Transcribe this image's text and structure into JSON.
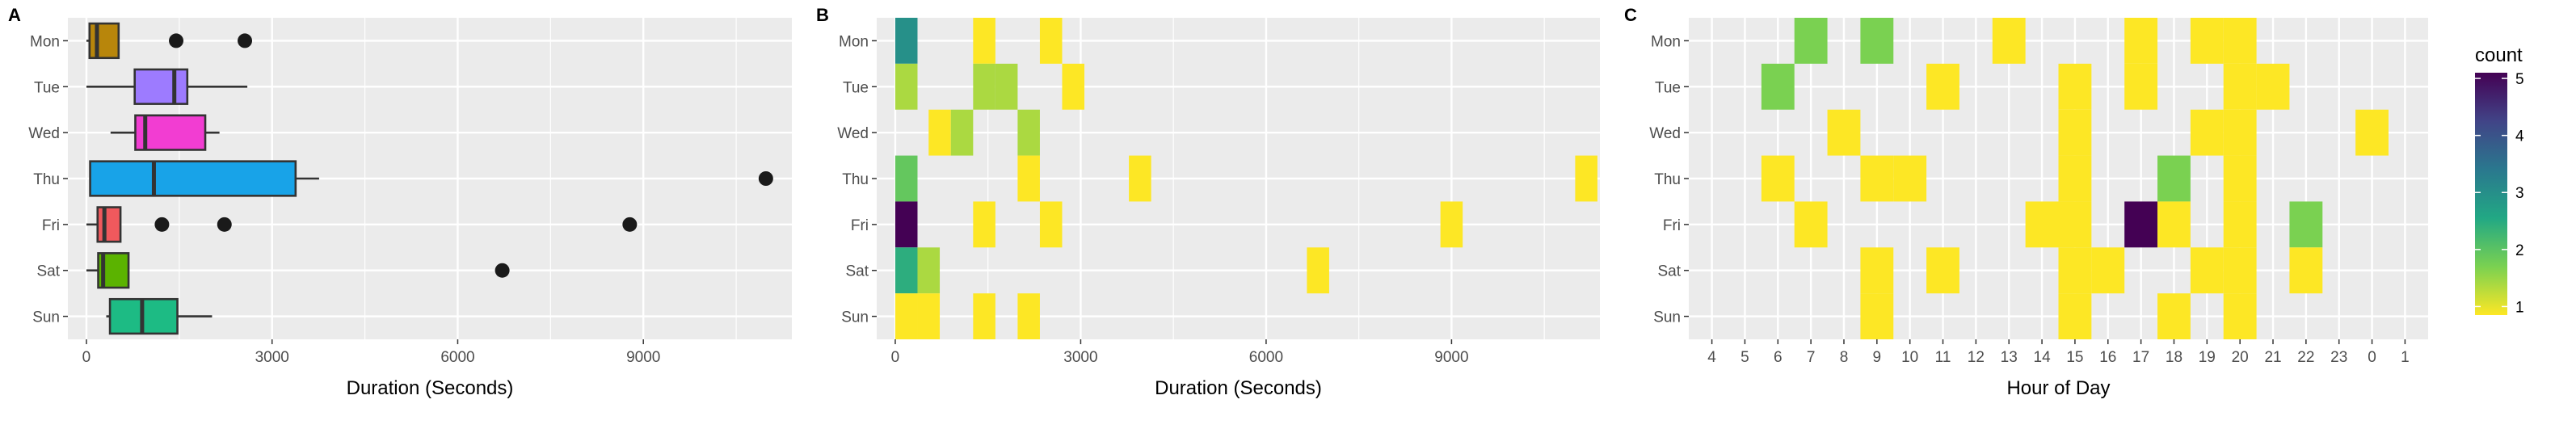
{
  "colors": {
    "panel_bg": "#EBEBEB",
    "grid": "#FFFFFF",
    "tick_text": "#4D4D4D",
    "box_outline": "#333333",
    "outlier": "#1A1A1A",
    "day_fills": {
      "Mon": "#B8860B",
      "Tue": "#9D7BFF",
      "Wed": "#F23DD2",
      "Thu": "#18A3E8",
      "Fri": "#F0595D",
      "Sat": "#5BB300",
      "Sun": "#1DBB84"
    },
    "viridis": [
      "#FDE725",
      "#7AD151",
      "#22A884",
      "#2A788E",
      "#414487",
      "#440154"
    ]
  },
  "chart_data": [
    {
      "panel": "A",
      "type": "boxplot",
      "xlabel": "Duration (Seconds)",
      "ylabel": "",
      "xlim": [
        -300,
        11400
      ],
      "xticks": [
        0,
        3000,
        6000,
        9000
      ],
      "grid": true,
      "categories": [
        "Mon",
        "Tue",
        "Wed",
        "Thu",
        "Fri",
        "Sat",
        "Sun"
      ],
      "boxes": [
        {
          "day": "Mon",
          "whisker_low": 0,
          "q1": 50,
          "median": 170,
          "q3": 520,
          "whisker_high": 520,
          "outliers": [
            1450,
            2560
          ]
        },
        {
          "day": "Tue",
          "whisker_low": 0,
          "q1": 780,
          "median": 1420,
          "q3": 1630,
          "whisker_high": 2600,
          "outliers": []
        },
        {
          "day": "Wed",
          "whisker_low": 390,
          "q1": 790,
          "median": 950,
          "q3": 1920,
          "whisker_high": 2150,
          "outliers": []
        },
        {
          "day": "Thu",
          "whisker_low": 60,
          "q1": 60,
          "median": 1090,
          "q3": 3380,
          "whisker_high": 3760,
          "outliers": [
            10980
          ]
        },
        {
          "day": "Fri",
          "whisker_low": 0,
          "q1": 180,
          "median": 290,
          "q3": 550,
          "whisker_high": 550,
          "outliers": [
            1220,
            2230,
            8780
          ]
        },
        {
          "day": "Sat",
          "whisker_low": 0,
          "q1": 190,
          "median": 270,
          "q3": 680,
          "whisker_high": 680,
          "outliers": [
            6720
          ]
        },
        {
          "day": "Sun",
          "whisker_low": 320,
          "q1": 380,
          "median": 900,
          "q3": 1470,
          "whisker_high": 2030,
          "outliers": []
        }
      ]
    },
    {
      "panel": "B",
      "type": "heatmap",
      "xlabel": "Duration (Seconds)",
      "ylabel": "",
      "xlim": [
        -300,
        11400
      ],
      "xticks": [
        0,
        3000,
        6000,
        9000
      ],
      "bin_width": 360,
      "categories": [
        "Mon",
        "Tue",
        "Wed",
        "Thu",
        "Fri",
        "Sat",
        "Sun"
      ],
      "cells": [
        {
          "day": "Mon",
          "x": 0,
          "count": 3
        },
        {
          "day": "Mon",
          "x": 1260,
          "count": 1
        },
        {
          "day": "Mon",
          "x": 2340,
          "count": 1
        },
        {
          "day": "Tue",
          "x": 0,
          "count": 1.5
        },
        {
          "day": "Tue",
          "x": 1260,
          "count": 1.5
        },
        {
          "day": "Tue",
          "x": 1620,
          "count": 1.5
        },
        {
          "day": "Tue",
          "x": 2700,
          "count": 1
        },
        {
          "day": "Wed",
          "x": 540,
          "count": 1
        },
        {
          "day": "Wed",
          "x": 900,
          "count": 1.5
        },
        {
          "day": "Wed",
          "x": 1980,
          "count": 1.5
        },
        {
          "day": "Thu",
          "x": 0,
          "count": 2
        },
        {
          "day": "Thu",
          "x": 1980,
          "count": 1
        },
        {
          "day": "Thu",
          "x": 3780,
          "count": 1
        },
        {
          "day": "Thu",
          "x": 11000,
          "count": 1
        },
        {
          "day": "Fri",
          "x": 0,
          "count": 5
        },
        {
          "day": "Fri",
          "x": 1260,
          "count": 1
        },
        {
          "day": "Fri",
          "x": 2340,
          "count": 1
        },
        {
          "day": "Fri",
          "x": 8820,
          "count": 1
        },
        {
          "day": "Sat",
          "x": 0,
          "count": 2.5
        },
        {
          "day": "Sat",
          "x": 360,
          "count": 1.5
        },
        {
          "day": "Sat",
          "x": 6660,
          "count": 1
        },
        {
          "day": "Sun",
          "x": 0,
          "count": 1
        },
        {
          "day": "Sun",
          "x": 360,
          "count": 1
        },
        {
          "day": "Sun",
          "x": 1260,
          "count": 1
        },
        {
          "day": "Sun",
          "x": 1980,
          "count": 1
        }
      ]
    },
    {
      "panel": "C",
      "type": "heatmap",
      "xlabel": "Hour of Day",
      "ylabel": "",
      "categories": [
        "Mon",
        "Tue",
        "Wed",
        "Thu",
        "Fri",
        "Sat",
        "Sun"
      ],
      "hours": [
        "4",
        "5",
        "6",
        "7",
        "8",
        "9",
        "10",
        "11",
        "12",
        "13",
        "14",
        "15",
        "16",
        "17",
        "18",
        "19",
        "20",
        "21",
        "22",
        "23",
        "0",
        "1"
      ],
      "cells": [
        {
          "day": "Mon",
          "hour": "7",
          "count": 1.8
        },
        {
          "day": "Mon",
          "hour": "9",
          "count": 1.8
        },
        {
          "day": "Mon",
          "hour": "13",
          "count": 1
        },
        {
          "day": "Mon",
          "hour": "17",
          "count": 1
        },
        {
          "day": "Mon",
          "hour": "19",
          "count": 1
        },
        {
          "day": "Mon",
          "hour": "20",
          "count": 1
        },
        {
          "day": "Tue",
          "hour": "6",
          "count": 1.8
        },
        {
          "day": "Tue",
          "hour": "11",
          "count": 1
        },
        {
          "day": "Tue",
          "hour": "15",
          "count": 1
        },
        {
          "day": "Tue",
          "hour": "17",
          "count": 1
        },
        {
          "day": "Tue",
          "hour": "20",
          "count": 1
        },
        {
          "day": "Tue",
          "hour": "21",
          "count": 1
        },
        {
          "day": "Wed",
          "hour": "8",
          "count": 1
        },
        {
          "day": "Wed",
          "hour": "15",
          "count": 1
        },
        {
          "day": "Wed",
          "hour": "19",
          "count": 1
        },
        {
          "day": "Wed",
          "hour": "20",
          "count": 1
        },
        {
          "day": "Wed",
          "hour": "0",
          "count": 1
        },
        {
          "day": "Thu",
          "hour": "6",
          "count": 1
        },
        {
          "day": "Thu",
          "hour": "9",
          "count": 1
        },
        {
          "day": "Thu",
          "hour": "10",
          "count": 1
        },
        {
          "day": "Thu",
          "hour": "15",
          "count": 1
        },
        {
          "day": "Thu",
          "hour": "18",
          "count": 1.8
        },
        {
          "day": "Thu",
          "hour": "20",
          "count": 1
        },
        {
          "day": "Fri",
          "hour": "7",
          "count": 1
        },
        {
          "day": "Fri",
          "hour": "14",
          "count": 1
        },
        {
          "day": "Fri",
          "hour": "15",
          "count": 1
        },
        {
          "day": "Fri",
          "hour": "17",
          "count": 5
        },
        {
          "day": "Fri",
          "hour": "18",
          "count": 1
        },
        {
          "day": "Fri",
          "hour": "20",
          "count": 1
        },
        {
          "day": "Fri",
          "hour": "22",
          "count": 1.8
        },
        {
          "day": "Sat",
          "hour": "9",
          "count": 1
        },
        {
          "day": "Sat",
          "hour": "11",
          "count": 1
        },
        {
          "day": "Sat",
          "hour": "15",
          "count": 1
        },
        {
          "day": "Sat",
          "hour": "16",
          "count": 1
        },
        {
          "day": "Sat",
          "hour": "19",
          "count": 1
        },
        {
          "day": "Sat",
          "hour": "20",
          "count": 1
        },
        {
          "day": "Sat",
          "hour": "22",
          "count": 1
        },
        {
          "day": "Sun",
          "hour": "9",
          "count": 1
        },
        {
          "day": "Sun",
          "hour": "15",
          "count": 1
        },
        {
          "day": "Sun",
          "hour": "18",
          "count": 1
        },
        {
          "day": "Sun",
          "hour": "20",
          "count": 1
        }
      ]
    }
  ],
  "legend": {
    "title": "count",
    "ticks": [
      1,
      2,
      3,
      4,
      5
    ],
    "range": [
      0.85,
      5.1
    ],
    "position": "right"
  }
}
